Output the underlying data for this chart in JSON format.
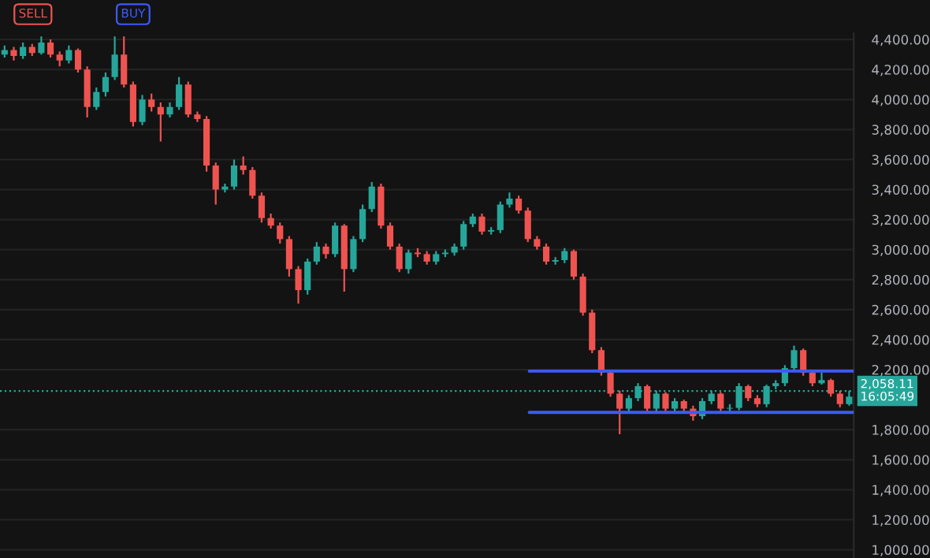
{
  "chart_data": {
    "type": "candlestick",
    "categories": [
      null,
      null,
      null,
      null,
      null,
      null,
      null,
      null,
      null,
      null,
      null,
      null,
      null,
      null,
      null,
      null,
      null,
      null,
      null,
      null,
      null,
      null,
      null,
      null,
      null,
      null,
      null,
      null,
      null,
      null,
      null,
      null,
      null,
      null,
      null,
      null,
      null,
      null,
      null,
      null,
      null,
      null,
      null,
      null,
      null,
      null,
      null,
      null,
      null,
      null,
      null,
      null,
      null,
      null,
      null,
      null,
      null,
      null,
      null,
      null,
      null,
      null,
      null,
      null,
      null,
      null,
      null,
      null,
      null,
      null,
      null,
      null,
      null,
      null,
      null,
      null,
      null,
      null,
      null,
      null,
      null,
      null,
      null,
      null,
      null,
      null,
      null,
      null,
      null,
      null,
      null,
      null,
      null
    ],
    "ohlc": [
      [
        4300,
        4360,
        4280,
        4330
      ],
      [
        4330,
        4350,
        4260,
        4290
      ],
      [
        4290,
        4380,
        4270,
        4350
      ],
      [
        4350,
        4370,
        4290,
        4310
      ],
      [
        4310,
        4420,
        4300,
        4380
      ],
      [
        4380,
        4400,
        4280,
        4300
      ],
      [
        4300,
        4320,
        4220,
        4260
      ],
      [
        4260,
        4360,
        4240,
        4330
      ],
      [
        4330,
        4340,
        4180,
        4200
      ],
      [
        4200,
        4220,
        3880,
        3950
      ],
      [
        3950,
        4080,
        3930,
        4050
      ],
      [
        4050,
        4180,
        4020,
        4150
      ],
      [
        4150,
        4420,
        4130,
        4300
      ],
      [
        4300,
        4420,
        4080,
        4100
      ],
      [
        4100,
        4120,
        3820,
        3850
      ],
      [
        3850,
        4030,
        3830,
        4000
      ],
      [
        4000,
        4040,
        3920,
        3950
      ],
      [
        3950,
        3980,
        3720,
        3900
      ],
      [
        3900,
        3980,
        3880,
        3950
      ],
      [
        3950,
        4150,
        3930,
        4100
      ],
      [
        4100,
        4120,
        3880,
        3900
      ],
      [
        3900,
        3920,
        3850,
        3870
      ],
      [
        3870,
        3890,
        3520,
        3560
      ],
      [
        3560,
        3580,
        3300,
        3400
      ],
      [
        3400,
        3440,
        3380,
        3420
      ],
      [
        3420,
        3600,
        3400,
        3560
      ],
      [
        3560,
        3620,
        3500,
        3530
      ],
      [
        3530,
        3550,
        3340,
        3360
      ],
      [
        3360,
        3380,
        3180,
        3210
      ],
      [
        3210,
        3240,
        3140,
        3160
      ],
      [
        3160,
        3180,
        3040,
        3070
      ],
      [
        3070,
        3090,
        2820,
        2870
      ],
      [
        2870,
        2890,
        2640,
        2730
      ],
      [
        2730,
        2940,
        2700,
        2920
      ],
      [
        2920,
        3050,
        2900,
        3020
      ],
      [
        3020,
        3040,
        2940,
        2970
      ],
      [
        2970,
        3180,
        2950,
        3160
      ],
      [
        3160,
        3170,
        2720,
        2870
      ],
      [
        2870,
        3090,
        2850,
        3070
      ],
      [
        3070,
        3300,
        3050,
        3270
      ],
      [
        3270,
        3450,
        3250,
        3420
      ],
      [
        3420,
        3440,
        3140,
        3160
      ],
      [
        3160,
        3180,
        3000,
        3020
      ],
      [
        3020,
        3040,
        2850,
        2870
      ],
      [
        2870,
        3000,
        2840,
        2980
      ],
      [
        2980,
        3010,
        2950,
        2970
      ],
      [
        2970,
        2990,
        2900,
        2920
      ],
      [
        2920,
        2990,
        2900,
        2970
      ],
      [
        2970,
        3000,
        2950,
        2980
      ],
      [
        2980,
        3040,
        2960,
        3020
      ],
      [
        3020,
        3190,
        3000,
        3170
      ],
      [
        3170,
        3240,
        3150,
        3220
      ],
      [
        3220,
        3240,
        3100,
        3120
      ],
      [
        3120,
        3150,
        3100,
        3130
      ],
      [
        3130,
        3320,
        3110,
        3300
      ],
      [
        3300,
        3380,
        3280,
        3340
      ],
      [
        3340,
        3360,
        3240,
        3260
      ],
      [
        3260,
        3280,
        3050,
        3070
      ],
      [
        3070,
        3090,
        3000,
        3020
      ],
      [
        3020,
        3040,
        2900,
        2920
      ],
      [
        2920,
        2950,
        2900,
        2930
      ],
      [
        2930,
        3010,
        2910,
        2990
      ],
      [
        2990,
        3000,
        2800,
        2820
      ],
      [
        2820,
        2840,
        2560,
        2580
      ],
      [
        2580,
        2600,
        2310,
        2330
      ],
      [
        2330,
        2350,
        2160,
        2180
      ],
      [
        2180,
        2200,
        2020,
        2040
      ],
      [
        2040,
        2060,
        1770,
        1940
      ],
      [
        1940,
        2030,
        1920,
        2010
      ],
      [
        2010,
        2110,
        1990,
        2090
      ],
      [
        2090,
        2100,
        1920,
        1940
      ],
      [
        1940,
        2060,
        1920,
        2040
      ],
      [
        2040,
        2050,
        1920,
        1940
      ],
      [
        1940,
        2010,
        1920,
        1990
      ],
      [
        1990,
        2000,
        1920,
        1940
      ],
      [
        1940,
        1960,
        1860,
        1890
      ],
      [
        1890,
        2010,
        1870,
        1990
      ],
      [
        1990,
        2060,
        1970,
        2040
      ],
      [
        2040,
        2050,
        1920,
        1940
      ],
      [
        1940,
        1970,
        1920,
        1945
      ],
      [
        1945,
        2110,
        1930,
        2090
      ],
      [
        2090,
        2100,
        1990,
        2010
      ],
      [
        2010,
        2030,
        1950,
        1970
      ],
      [
        1970,
        2100,
        1950,
        2090
      ],
      [
        2090,
        2130,
        2070,
        2110
      ],
      [
        2110,
        2230,
        2090,
        2210
      ],
      [
        2210,
        2360,
        2190,
        2330
      ],
      [
        2330,
        2340,
        2160,
        2180
      ],
      [
        2180,
        2200,
        2090,
        2110
      ],
      [
        2110,
        2180,
        2100,
        2130
      ],
      [
        2130,
        2140,
        2020,
        2040
      ],
      [
        2040,
        2060,
        1950,
        1970
      ],
      [
        1970,
        2060,
        1960,
        2020
      ]
    ],
    "ylim": [
      945,
      4440
    ],
    "yticks": [
      {
        "value": 1000,
        "label": "1,000.00"
      },
      {
        "value": 1200,
        "label": "1,200.00"
      },
      {
        "value": 1400,
        "label": "1,400.00"
      },
      {
        "value": 1600,
        "label": "1,600.00"
      },
      {
        "value": 1800,
        "label": "1,800.00"
      },
      {
        "value": 2200,
        "label": "2,200.00"
      },
      {
        "value": 2400,
        "label": "2,400.00"
      },
      {
        "value": 2600,
        "label": "2,600.00"
      },
      {
        "value": 2800,
        "label": "2,800.00"
      },
      {
        "value": 3000,
        "label": "3,000.00"
      },
      {
        "value": 3200,
        "label": "3,200.00"
      },
      {
        "value": 3400,
        "label": "3,400.00"
      },
      {
        "value": 3600,
        "label": "3,600.00"
      },
      {
        "value": 3800,
        "label": "3,800.00"
      },
      {
        "value": 4000,
        "label": "4,000.00"
      },
      {
        "value": 4200,
        "label": "4,200.00"
      },
      {
        "value": 4400,
        "label": "4,400.00"
      }
    ],
    "ref_lines": [
      {
        "axis": "y",
        "value": 2058.11,
        "label": "2,058.11\n16:05:49",
        "color": "#26a69a",
        "line_style": "dotted"
      },
      {
        "axis": "y",
        "value": 2190,
        "color": "#3d5afe",
        "line_style": "solid"
      },
      {
        "axis": "y",
        "value": 1915,
        "color": "#3d5afe",
        "line_style": "solid"
      }
    ],
    "annotations": [
      "SELL",
      "BUY"
    ],
    "grid": "y",
    "tick_labels": "y"
  }
}
